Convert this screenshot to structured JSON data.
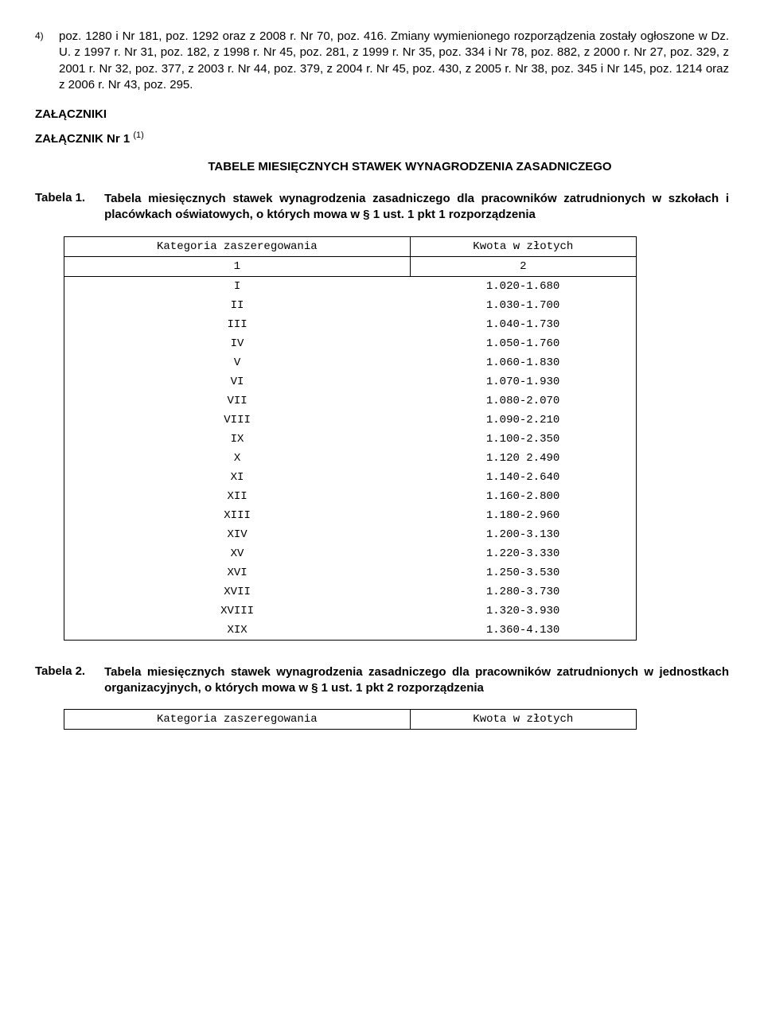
{
  "footnote": {
    "num": "4)",
    "text": "poz. 1280 i Nr 181, poz. 1292 oraz z 2008 r. Nr 70, poz. 416.\nZmiany wymienionego rozporządzenia zostały ogłoszone w Dz. U. z 1997 r. Nr 31, poz. 182, z 1998 r. Nr 45, poz. 281, z 1999 r. Nr 35, poz. 334 i Nr 78, poz. 882, z 2000 r. Nr 27, poz. 329, z 2001 r. Nr 32, poz. 377, z 2003 r. Nr 44, poz. 379, z 2004 r. Nr 45, poz. 430, z 2005 r. Nr 38, poz. 345 i Nr 145, poz. 1214 oraz z 2006 r. Nr 43, poz. 295."
  },
  "zalaczniki": "ZAŁĄCZNIKI",
  "zalacznik1": {
    "label": "ZAŁĄCZNIK Nr 1 ",
    "sup": "(1)"
  },
  "tabele_title": "TABELE MIESIĘCZNYCH STAWEK WYNAGRODZENIA ZASADNICZEGO",
  "tabela1": {
    "label": "Tabela 1.",
    "desc": "Tabela miesięcznych stawek wynagrodzenia zasadniczego dla pracowników zatrudnionych w szkołach i placówkach oświatowych, o których mowa w § 1 ust. 1 pkt 1 rozporządzenia"
  },
  "table1": {
    "headers": [
      "Kategoria zaszeregowania",
      "Kwota w złotych"
    ],
    "numrow": [
      "1",
      "2"
    ],
    "rows": [
      [
        "I",
        "1.020-1.680"
      ],
      [
        "II",
        "1.030-1.700"
      ],
      [
        "III",
        "1.040-1.730"
      ],
      [
        "IV",
        "1.050-1.760"
      ],
      [
        "V",
        "1.060-1.830"
      ],
      [
        "VI",
        "1.070-1.930"
      ],
      [
        "VII",
        "1.080-2.070"
      ],
      [
        "VIII",
        "1.090-2.210"
      ],
      [
        "IX",
        "1.100-2.350"
      ],
      [
        "X",
        "1.120 2.490"
      ],
      [
        "XI",
        "1.140-2.640"
      ],
      [
        "XII",
        "1.160-2.800"
      ],
      [
        "XIII",
        "1.180-2.960"
      ],
      [
        "XIV",
        "1.200-3.130"
      ],
      [
        "XV",
        "1.220-3.330"
      ],
      [
        "XVI",
        "1.250-3.530"
      ],
      [
        "XVII",
        "1.280-3.730"
      ],
      [
        "XVIII",
        "1.320-3.930"
      ],
      [
        "XIX",
        "1.360-4.130"
      ]
    ]
  },
  "tabela2": {
    "label": "Tabela 2.",
    "desc": "Tabela miesięcznych stawek wynagrodzenia zasadniczego dla pracowników zatrudnionych w jednostkach organizacyjnych, o których mowa w § 1 ust. 1 pkt 2 rozporządzenia"
  },
  "table2": {
    "headers": [
      "Kategoria zaszeregowania",
      "Kwota w złotych"
    ]
  }
}
